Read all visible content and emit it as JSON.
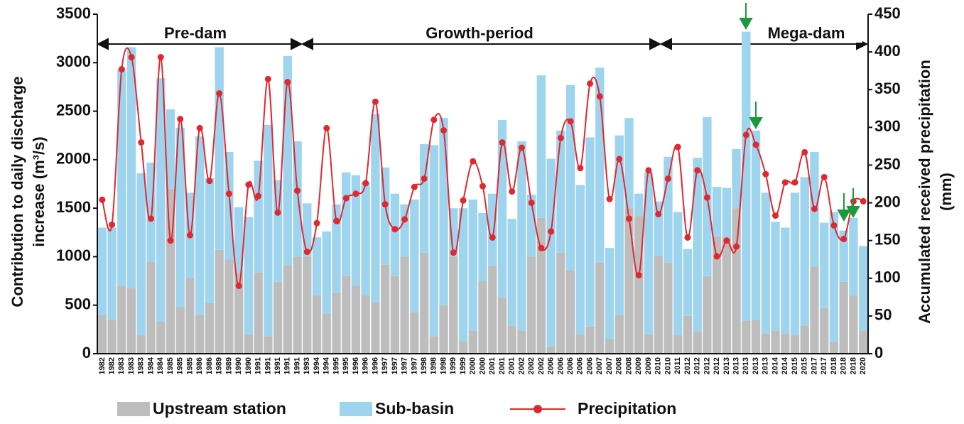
{
  "chart_data": {
    "type": "bar",
    "stacked": true,
    "y_label": [
      "Contribution to daily discharge",
      "increase (m³/s)"
    ],
    "y2_label": [
      "Accumulated received precipitation",
      "(mm)"
    ],
    "annotations": [
      "Pre-dam",
      "Growth-period",
      "Mega-dam"
    ],
    "categories": [
      "1982",
      "1982",
      "1983",
      "1983",
      "1983",
      "1984",
      "1984",
      "1985",
      "1985",
      "1985",
      "1986",
      "1986",
      "1989",
      "1989",
      "1990",
      "1990",
      "1991",
      "1991",
      "1991",
      "1991",
      "1991",
      "1993",
      "1994",
      "1994",
      "1995",
      "1995",
      "1996",
      "1996",
      "1996",
      "1997",
      "1997",
      "1997",
      "1997",
      "1998",
      "1998",
      "1998",
      "1999",
      "1999",
      "2000",
      "2000",
      "2001",
      "2001",
      "2001",
      "2002",
      "2002",
      "2002",
      "2006",
      "2006",
      "2006",
      "2006",
      "2006",
      "2007",
      "2007",
      "2008",
      "2008",
      "2009",
      "2009",
      "2010",
      "2010",
      "2011",
      "2012",
      "2012",
      "2012",
      "2012",
      "2013",
      "2013",
      "2013",
      "2013",
      "2013",
      "2014",
      "2014",
      "2015",
      "2015",
      "2017",
      "2017",
      "2018",
      "2018",
      "2018",
      "2020"
    ],
    "series": [
      {
        "name": "Upstream station",
        "color": "#bdbdbd",
        "values": [
          400,
          350,
          700,
          680,
          190,
          950,
          330,
          1700,
          480,
          780,
          400,
          520,
          1070,
          970,
          830,
          200,
          840,
          180,
          740,
          910,
          1000,
          1000,
          600,
          410,
          630,
          800,
          700,
          600,
          530,
          920,
          800,
          1000,
          430,
          1040,
          180,
          500,
          1000,
          130,
          240,
          750,
          910,
          580,
          290,
          240,
          1000,
          1400,
          70,
          1040,
          860,
          200,
          280,
          940,
          150,
          400,
          1500,
          1420,
          200,
          1010,
          940,
          190,
          390,
          230,
          800,
          1210,
          1200,
          1500,
          340,
          350,
          210,
          240,
          210,
          190,
          290,
          900,
          470,
          120,
          740,
          600,
          240
        ]
      },
      {
        "name": "Sub-basin",
        "color": "#9fd4ef",
        "values": [
          900,
          950,
          2230,
          2480,
          1670,
          1020,
          2510,
          820,
          1850,
          880,
          1840,
          1290,
          2090,
          1110,
          680,
          1210,
          1150,
          2180,
          1050,
          2160,
          1190,
          550,
          600,
          850,
          910,
          1070,
          1140,
          1170,
          1940,
          1000,
          850,
          540,
          1160,
          1120,
          1970,
          1930,
          500,
          1370,
          1350,
          700,
          740,
          1830,
          1100,
          1950,
          640,
          1470,
          1940,
          1260,
          1910,
          1540,
          1950,
          2010,
          940,
          1850,
          930,
          230,
          1670,
          560,
          1090,
          1270,
          690,
          1790,
          1640,
          510,
          510,
          610,
          2980,
          1950,
          1450,
          1120,
          1090,
          1470,
          1530,
          1180,
          880,
          1340,
          530,
          800,
          870
        ]
      },
      {
        "name": "Precipitation",
        "color": "#e0282e",
        "type": "line",
        "axis": "y2",
        "values": [
          204,
          171,
          377,
          393,
          280,
          179,
          393,
          150,
          311,
          157,
          299,
          229,
          345,
          212,
          90,
          224,
          209,
          364,
          187,
          360,
          216,
          135,
          173,
          299,
          176,
          206,
          212,
          226,
          334,
          198,
          165,
          178,
          221,
          232,
          310,
          296,
          134,
          203,
          255,
          222,
          154,
          280,
          215,
          273,
          200,
          140,
          162,
          286,
          308,
          246,
          358,
          341,
          205,
          258,
          179,
          104,
          243,
          185,
          232,
          274,
          154,
          243,
          207,
          129,
          150,
          142,
          290,
          277,
          238,
          183,
          227,
          227,
          267,
          192,
          234,
          170,
          152,
          202,
          202
        ]
      }
    ],
    "ylim": [
      0,
      3500
    ],
    "yticks": [
      0,
      500,
      1000,
      1500,
      2000,
      2500,
      3000,
      3500
    ],
    "y2lim": [
      0,
      450
    ],
    "y2ticks": [
      0,
      50,
      100,
      150,
      200,
      250,
      300,
      350,
      400,
      450
    ]
  }
}
